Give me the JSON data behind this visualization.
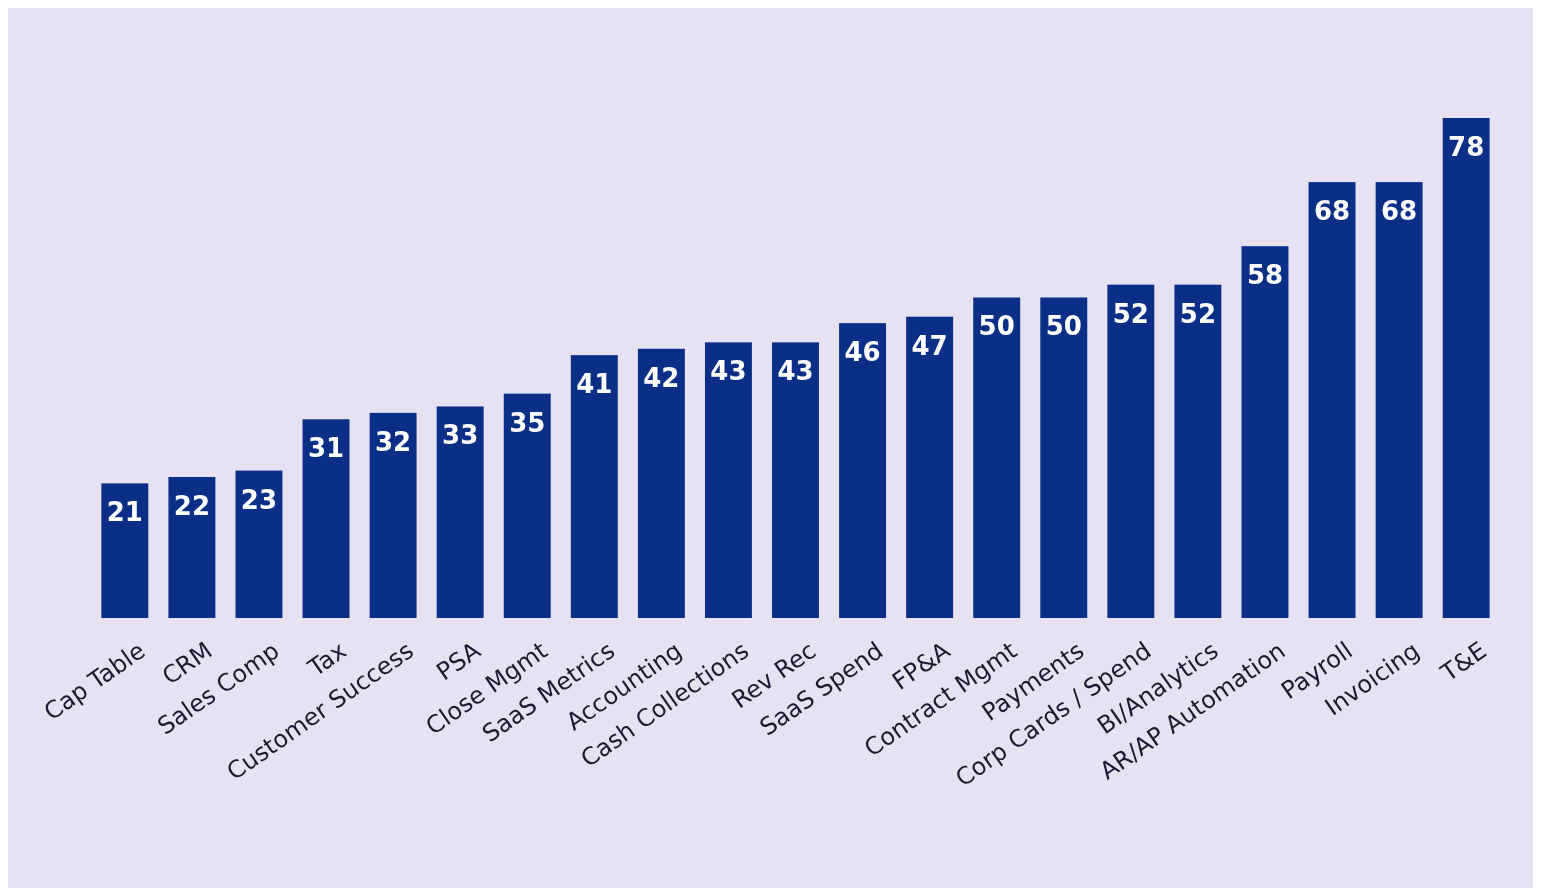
{
  "chart_data": {
    "type": "bar",
    "categories": [
      "Cap Table",
      "CRM",
      "Sales Comp",
      "Tax",
      "Customer Success",
      "PSA",
      "Close Mgmt",
      "SaaS Metrics",
      "Accounting",
      "Cash Collections",
      "Rev Rec",
      "SaaS Spend",
      "FP&A",
      "Contract Mgmt",
      "Payments",
      "Corp Cards / Spend",
      "BI/Analytics",
      "AR/AP Automation",
      "Payroll",
      "Invoicing",
      "T&E"
    ],
    "values": [
      21,
      22,
      23,
      31,
      32,
      33,
      35,
      41,
      42,
      43,
      43,
      46,
      47,
      50,
      50,
      52,
      52,
      58,
      68,
      68,
      78
    ],
    "color": "#0b2f86",
    "data_labels": true
  }
}
